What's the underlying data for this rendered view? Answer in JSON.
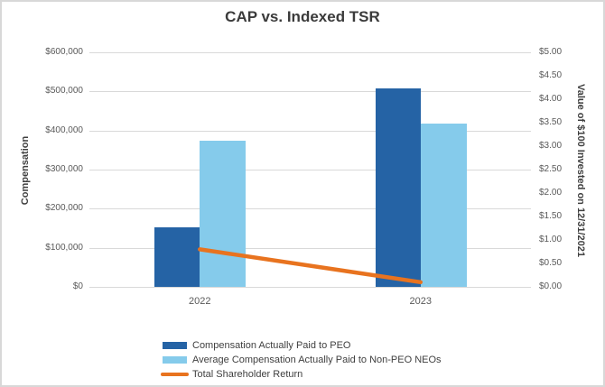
{
  "chart_data": {
    "type": "bar",
    "title": "CAP vs. Indexed TSR",
    "categories": [
      "2022",
      "2023"
    ],
    "series": [
      {
        "name": "Compensation Actually Paid to PEO",
        "type": "bar",
        "axis": "left",
        "color": "#2563a5",
        "values": [
          152000,
          508000
        ]
      },
      {
        "name": "Average Compensation Actually Paid to Non-PEO NEOs",
        "type": "bar",
        "axis": "left",
        "color": "#85cbeb",
        "values": [
          374000,
          418000
        ]
      },
      {
        "name": "Total Shareholder Return",
        "type": "line",
        "axis": "right",
        "color": "#e8731f",
        "values": [
          0.8,
          0.1
        ]
      }
    ],
    "left_axis": {
      "label": "Compensation",
      "min": 0,
      "max": 600000,
      "ticks": [
        "$600,000",
        "$500,000",
        "$400,000",
        "$300,000",
        "$200,000",
        "$100,000",
        "$0"
      ]
    },
    "right_axis": {
      "label": "Value of $100 Invested on 12/31/2021",
      "min": 0,
      "max": 5,
      "ticks": [
        "$5.00",
        "$4.50",
        "$4.00",
        "$3.50",
        "$3.00",
        "$2.50",
        "$2.00",
        "$1.50",
        "$1.00",
        "$0.50",
        "$0.00"
      ]
    },
    "grid": true,
    "legend_position": "bottom"
  }
}
